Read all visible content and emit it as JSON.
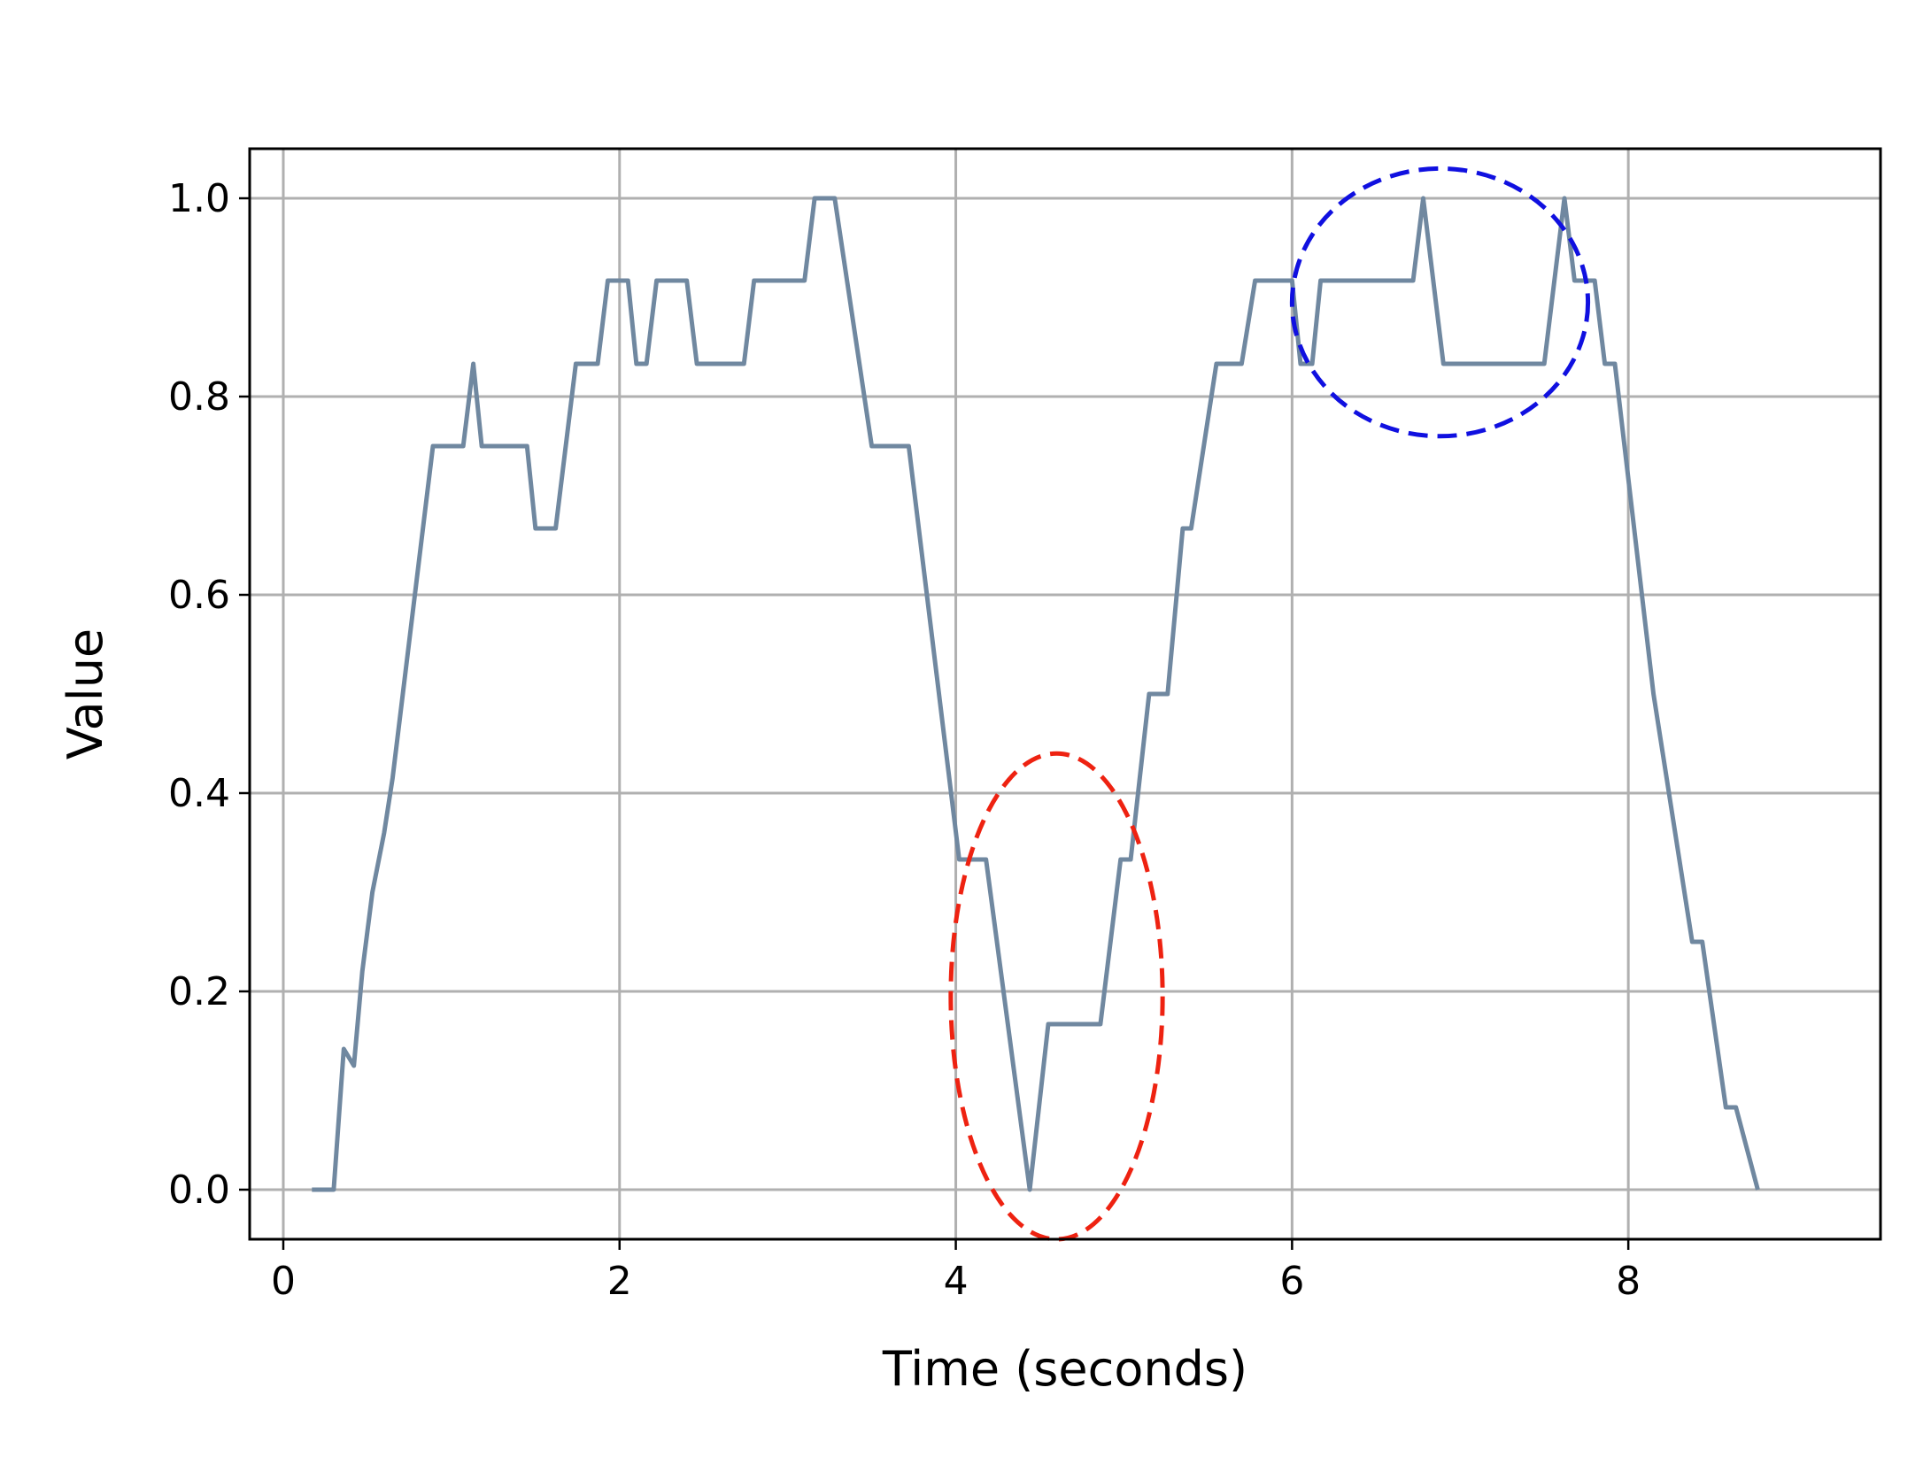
{
  "chart_data": {
    "type": "line",
    "title": "",
    "xlabel": "Time (seconds)",
    "ylabel": "Value",
    "xlim": [
      -0.2,
      9.5
    ],
    "ylim": [
      -0.05,
      1.05
    ],
    "x_ticks": [
      0,
      2,
      4,
      6,
      8
    ],
    "x_tick_labels": [
      "0",
      "2",
      "4",
      "6",
      "8"
    ],
    "y_ticks": [
      0.0,
      0.2,
      0.4,
      0.6,
      0.8,
      1.0
    ],
    "y_tick_labels": [
      "0.0",
      "0.2",
      "0.4",
      "0.6",
      "0.8",
      "1.0"
    ],
    "grid": true,
    "series": [
      {
        "color": "#7088a0",
        "x": [
          0.17,
          0.3,
          0.36,
          0.42,
          0.47,
          0.53,
          0.6,
          0.65,
          0.89,
          1.07,
          1.13,
          1.18,
          1.45,
          1.5,
          1.62,
          1.74,
          1.87,
          1.93,
          2.05,
          2.1,
          2.16,
          2.22,
          2.4,
          2.46,
          2.74,
          2.8,
          3.1,
          3.16,
          3.28,
          3.5,
          3.72,
          4.02,
          4.08,
          4.18,
          4.44,
          4.55,
          4.86,
          4.98,
          5.04,
          5.15,
          5.26,
          5.35,
          5.4,
          5.55,
          5.7,
          5.78,
          6.0,
          6.05,
          6.12,
          6.17,
          6.72,
          6.78,
          6.9,
          7.5,
          7.62,
          7.68,
          7.8,
          7.86,
          7.92,
          8.15,
          8.38,
          8.44,
          8.58,
          8.64,
          8.77
        ],
        "y": [
          0.0,
          0.0,
          0.142,
          0.125,
          0.22,
          0.3,
          0.36,
          0.415,
          0.75,
          0.75,
          0.833,
          0.75,
          0.75,
          0.667,
          0.667,
          0.833,
          0.833,
          0.917,
          0.917,
          0.833,
          0.833,
          0.917,
          0.917,
          0.833,
          0.833,
          0.917,
          0.917,
          1.0,
          1.0,
          0.75,
          0.75,
          0.333,
          0.333,
          0.333,
          0.0,
          0.167,
          0.167,
          0.333,
          0.333,
          0.5,
          0.5,
          0.667,
          0.667,
          0.833,
          0.833,
          0.917,
          0.917,
          0.833,
          0.833,
          0.917,
          0.917,
          1.0,
          0.833,
          0.833,
          1.0,
          0.917,
          0.917,
          0.833,
          0.833,
          0.5,
          0.25,
          0.25,
          0.083,
          0.083,
          0.0
        ]
      }
    ],
    "annotations": [
      {
        "shape": "ellipse",
        "color": "#ee2211",
        "style": "dashed",
        "cx": 4.6,
        "cy": 0.195,
        "rx": 0.63,
        "ry": 0.245
      },
      {
        "shape": "ellipse",
        "color": "#1010e0",
        "style": "dashed",
        "cx": 6.88,
        "cy": 0.895,
        "rx": 0.88,
        "ry": 0.135
      }
    ]
  }
}
